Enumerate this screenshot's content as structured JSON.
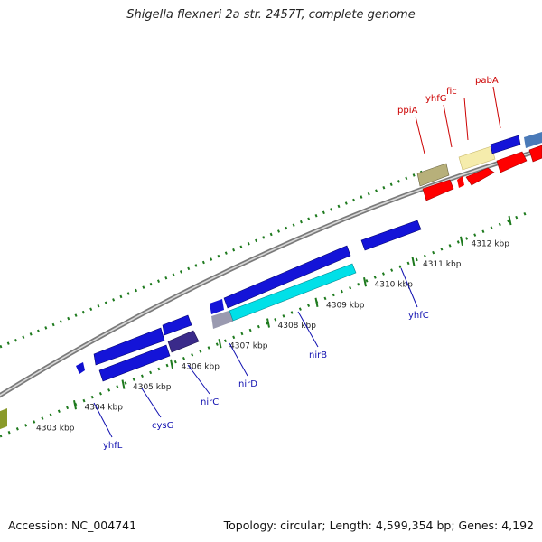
{
  "title": "Shigella flexneri 2a str. 2457T, complete genome",
  "footer": {
    "accession": "Accession: NC_004741",
    "summary": "Topology: circular; Length: 4,599,354 bp; Genes: 4,192"
  },
  "colors": {
    "backbone": "#8c8c8c",
    "tick": "#1e7a1e",
    "forward_label": "#cc0000",
    "reverse_label": "#1010b0"
  },
  "kbp_ticks": [
    {
      "label": "4303 kbp",
      "pos": 4303
    },
    {
      "label": "4304 kbp",
      "pos": 4304
    },
    {
      "label": "4305 kbp",
      "pos": 4305
    },
    {
      "label": "4306 kbp",
      "pos": 4306
    },
    {
      "label": "4307 kbp",
      "pos": 4307
    },
    {
      "label": "4308 kbp",
      "pos": 4308
    },
    {
      "label": "4309 kbp",
      "pos": 4309
    },
    {
      "label": "4310 kbp",
      "pos": 4310
    },
    {
      "label": "4311 kbp",
      "pos": 4311
    },
    {
      "label": "4312 kbp",
      "pos": 4312
    }
  ],
  "forward_gene_labels": [
    {
      "name": "ppiA",
      "pos": 4311.8
    },
    {
      "name": "yhfG",
      "pos": 4312.2
    },
    {
      "name": "fic",
      "pos": 4312.5
    },
    {
      "name": "pabA",
      "pos": 4313.0
    }
  ],
  "reverse_gene_labels": [
    {
      "name": "yhfL",
      "pos": 4304.3
    },
    {
      "name": "cysG",
      "pos": 4305.2
    },
    {
      "name": "nirC",
      "pos": 4305.9
    },
    {
      "name": "nirD",
      "pos": 4306.7
    },
    {
      "name": "nirB",
      "pos": 4308.5
    },
    {
      "name": "yhfC",
      "pos": 4310.3
    }
  ]
}
